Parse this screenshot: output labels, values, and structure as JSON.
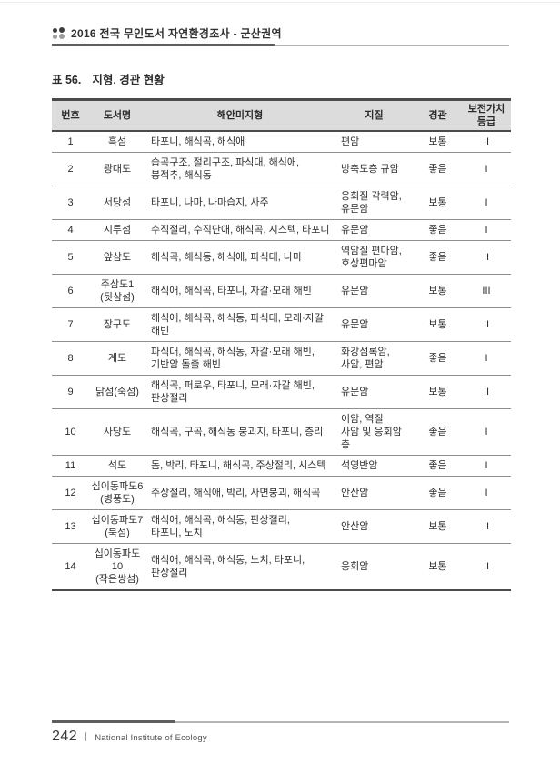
{
  "running_head": {
    "title": "2016 전국 무인도서 자연환경조사 - 군산권역"
  },
  "doc_title": {
    "label": "표 56.",
    "text": "지형, 경관 현황"
  },
  "table": {
    "columns": [
      "번호",
      "도서명",
      "해안미지형",
      "지질",
      "경관",
      "보전가치\n등급"
    ],
    "rows": [
      {
        "no": "1",
        "name": "흑섬",
        "terrain": "타포니, 해식곡, 해식애",
        "geology": "편암",
        "landscape": "보통",
        "grade": "II"
      },
      {
        "no": "2",
        "name": "광대도",
        "terrain": "습곡구조, 절리구조, 파식대, 해식애,\n붕적추, 해식동",
        "geology": "방축도층 규암",
        "landscape": "좋음",
        "grade": "I"
      },
      {
        "no": "3",
        "name": "서당섬",
        "terrain": "타포니, 나마, 나마습지, 사주",
        "geology": "응회질 각력암,\n유문암",
        "landscape": "보통",
        "grade": "I"
      },
      {
        "no": "4",
        "name": "시투섬",
        "terrain": "수직절리, 수직단애, 해식곡, 시스텍, 타포니",
        "geology": "유문암",
        "landscape": "좋음",
        "grade": "I"
      },
      {
        "no": "5",
        "name": "앞삼도",
        "terrain": "해식곡, 해식동, 해식애, 파식대, 나마",
        "geology": "역암질 편마암,\n호상편마암",
        "landscape": "좋음",
        "grade": "II"
      },
      {
        "no": "6",
        "name": "주삼도1\n(뒷삼섬)",
        "terrain": "해식애, 해식곡, 타포니, 자갈·모래 해빈",
        "geology": "유문암",
        "landscape": "보통",
        "grade": "III"
      },
      {
        "no": "7",
        "name": "장구도",
        "terrain": "해식애, 해식곡, 해식동, 파식대, 모래·자갈해빈",
        "geology": "유문암",
        "landscape": "보통",
        "grade": "II"
      },
      {
        "no": "8",
        "name": "계도",
        "terrain": "파식대, 해식곡, 해식동, 자갈·모래 해빈,\n기반암 돌출 해빈",
        "geology": "화강섬록암,\n사암, 편암",
        "landscape": "좋음",
        "grade": "I"
      },
      {
        "no": "9",
        "name": "닭섬(숙섬)",
        "terrain": "해식곡, 퍼로우, 타포니, 모래·자갈 해빈,\n판상절리",
        "geology": "유문암",
        "landscape": "보통",
        "grade": "II"
      },
      {
        "no": "10",
        "name": "사당도",
        "terrain": "해식곡, 구곡, 해식동 붕괴지, 타포니, 층리",
        "geology": "이암, 역질\n사암 및 응회암 층",
        "landscape": "좋음",
        "grade": "I"
      },
      {
        "no": "11",
        "name": "석도",
        "terrain": "돔, 박리, 타포니, 해식곡, 주상절리, 시스텍",
        "geology": "석영반암",
        "landscape": "좋음",
        "grade": "I"
      },
      {
        "no": "12",
        "name": "십이동파도6\n(병풍도)",
        "terrain": "주상절리, 해식애, 박리, 사면붕괴, 해식곡",
        "geology": "안산암",
        "landscape": "좋음",
        "grade": "I"
      },
      {
        "no": "13",
        "name": "십이동파도7\n(북섬)",
        "terrain": "해식애, 해식곡, 해식동, 판상절리,\n타포니, 노치",
        "geology": "안산암",
        "landscape": "보통",
        "grade": "II"
      },
      {
        "no": "14",
        "name": "십이동파도10\n(작은쌍섬)",
        "terrain": "해식애, 해식곡, 해식동, 노치, 타포니,\n판상절리",
        "geology": "응회암",
        "landscape": "보통",
        "grade": "II"
      }
    ]
  },
  "footer": {
    "page_number": "242",
    "org": "National Institute of Ecology"
  },
  "colors": {
    "rule_dark": "#5e5e5e",
    "rule_light": "#b3b3b3",
    "header_bg": "#dcdcdc",
    "border_dark": "#4b4b4b",
    "row_line": "#8f8f8f"
  }
}
